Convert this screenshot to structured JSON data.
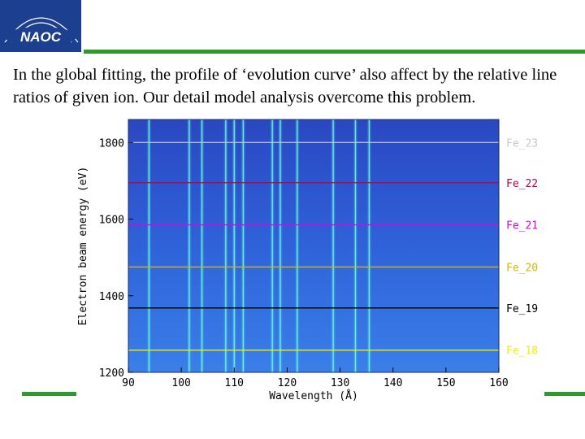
{
  "logo": {
    "text": "NAOC",
    "bg": "#1d3f8f"
  },
  "caption": "In the global fitting, the profile of ‘evolution curve’ also affect by the relative line ratios of given ion. Our detail model analysis overcome this problem.",
  "colors": {
    "accent_green": "#2e9a2e"
  },
  "chart_data": {
    "type": "heatmap",
    "xlabel": "Wavelength (Å)",
    "ylabel": "Electron beam energy (eV)",
    "xlim": [
      90,
      160
    ],
    "ylim": [
      1200,
      1860
    ],
    "x_ticks": [
      90,
      100,
      110,
      120,
      130,
      140,
      150,
      160
    ],
    "y_ticks": [
      1200,
      1400,
      1600,
      1800
    ],
    "ions": [
      {
        "label": "Fe_23",
        "energy": 1800,
        "color": "#c8c8c8"
      },
      {
        "label": "Fe_22",
        "energy": 1695,
        "color": "#c0003c"
      },
      {
        "label": "Fe_21",
        "energy": 1585,
        "color": "#e000e0"
      },
      {
        "label": "Fe_20",
        "energy": 1475,
        "color": "#d4b800"
      },
      {
        "label": "Fe_19",
        "energy": 1368,
        "color": "#000000"
      },
      {
        "label": "Fe_18",
        "energy": 1258,
        "color": "#f0f000"
      }
    ],
    "lines": [
      93.9,
      101.5,
      103.9,
      108.4,
      110.0,
      111.7,
      117.2,
      118.7,
      121.9,
      128.7,
      132.9,
      135.5
    ]
  }
}
